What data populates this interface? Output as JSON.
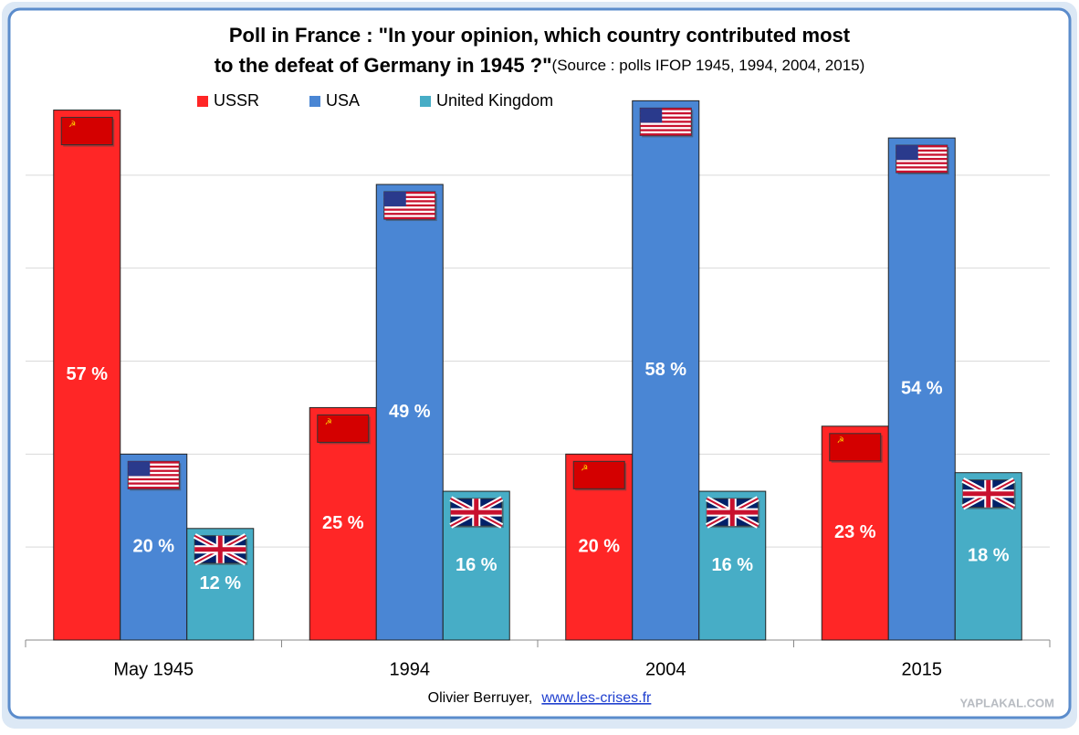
{
  "chart_data": {
    "type": "bar",
    "title": [
      "Poll in France : \"In your opinion, which country contributed most",
      "to the defeat of Germany in 1945 ?\""
    ],
    "subtitle": "(Source : polls IFOP 1945, 1994, 2004, 2015)",
    "categories": [
      "May 1945",
      "1994",
      "2004",
      "2015"
    ],
    "series": [
      {
        "name": "USSR",
        "color": "#ff2626",
        "values": [
          57,
          25,
          20,
          23
        ],
        "value_labels": [
          "57 %",
          "25 %",
          "20 %",
          "23 %"
        ]
      },
      {
        "name": "USA",
        "color": "#4a86d4",
        "values": [
          20,
          49,
          58,
          54
        ],
        "value_labels": [
          "20 %",
          "49 %",
          "58 %",
          "54 %"
        ]
      },
      {
        "name": "United Kingdom",
        "color": "#47adc6",
        "values": [
          12,
          16,
          16,
          18
        ],
        "value_labels": [
          "12 %",
          "16 %",
          "16 %",
          "18 %"
        ]
      }
    ],
    "ylim": [
      0,
      60
    ],
    "yticks": [
      0,
      10,
      20,
      30,
      40,
      50
    ],
    "grid": true,
    "footer": {
      "author": "Olivier Berruyer,",
      "link": "www.les-crises.fr"
    },
    "watermark": "YAPLAKAL.COM"
  }
}
